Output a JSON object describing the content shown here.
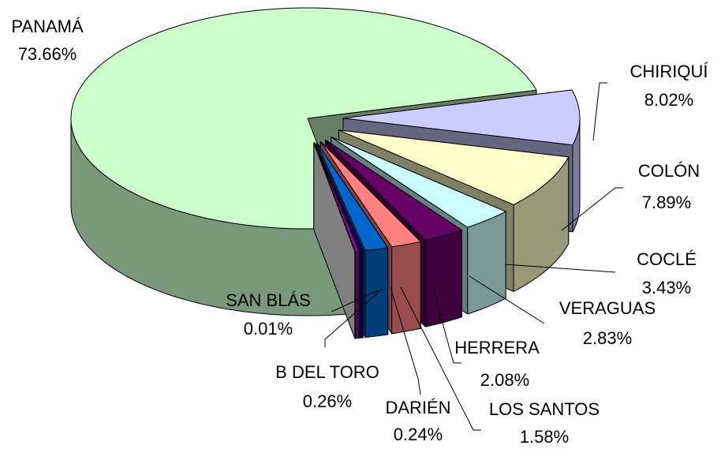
{
  "chart_data": {
    "type": "pie",
    "categories": [
      "PANAMÁ",
      "CHIRIQUÍ",
      "COLÓN",
      "COCLÉ",
      "VERAGUAS",
      "HERRERA",
      "LOS SANTOS",
      "DARIÉN",
      "B DEL TORO",
      "SAN BLÁS"
    ],
    "values": [
      73.66,
      8.02,
      7.89,
      3.43,
      2.83,
      2.08,
      1.58,
      0.24,
      0.26,
      0.01
    ],
    "value_labels": [
      "73.66%",
      "8.02%",
      "7.89%",
      "3.43%",
      "2.83%",
      "2.08%",
      "1.58%",
      "0.24%",
      "0.26%",
      "0.01%"
    ],
    "colors": [
      "#ccffcc",
      "#ccccff",
      "#ffffcc",
      "#ccffff",
      "#660066",
      "#ff8080",
      "#0066cc",
      "#000080",
      "#990099",
      "#ffffff"
    ]
  }
}
